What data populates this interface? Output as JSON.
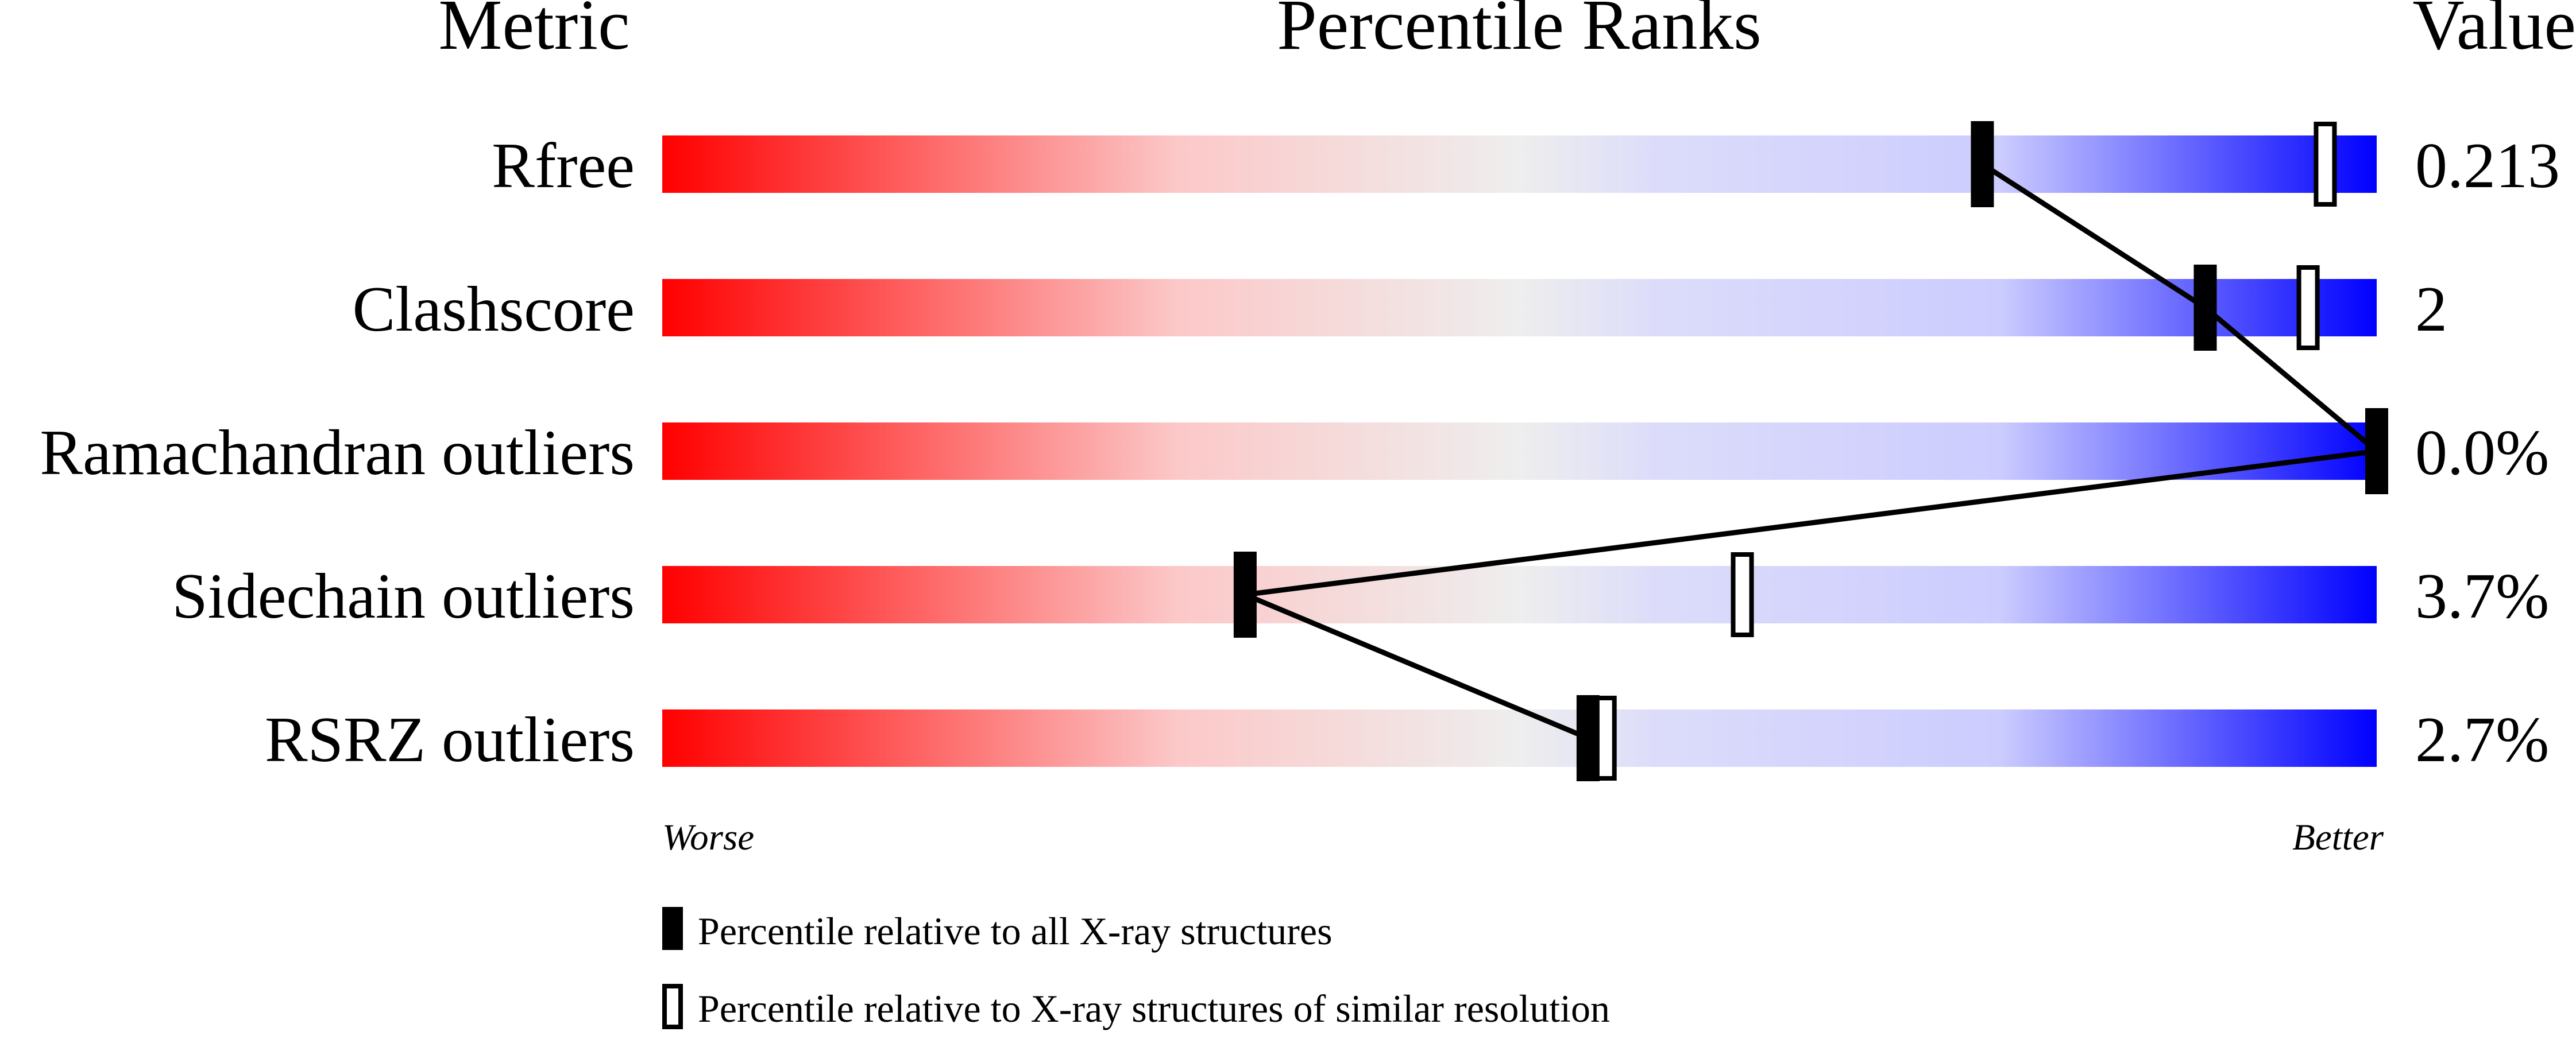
{
  "chart_data": {
    "type": "percentile-slider",
    "headers": {
      "metric": "Metric",
      "ranks": "Percentile Ranks",
      "value": "Value"
    },
    "xlim": [
      0,
      100
    ],
    "axis_labels": {
      "left": "Worse",
      "right": "Better"
    },
    "gradient_colors": [
      "#ff0000",
      "#f0f0f0",
      "#d0d0ff",
      "#0000ff"
    ],
    "rows": [
      {
        "metric": "Rfree",
        "value": "0.213",
        "percentile_all": 77,
        "percentile_similar": 97
      },
      {
        "metric": "Clashscore",
        "value": "2",
        "percentile_all": 90,
        "percentile_similar": 96
      },
      {
        "metric": "Ramachandran outliers",
        "value": "0.0%",
        "percentile_all": 100,
        "percentile_similar": 100
      },
      {
        "metric": "Sidechain outliers",
        "value": "3.7%",
        "percentile_all": 34,
        "percentile_similar": 63
      },
      {
        "metric": "RSRZ outliers",
        "value": "2.7%",
        "percentile_all": 54,
        "percentile_similar": 55
      }
    ],
    "legend": [
      {
        "marker": "filled",
        "label": "Percentile relative to all X-ray structures"
      },
      {
        "marker": "open",
        "label": "Percentile relative to X-ray structures of similar resolution"
      }
    ]
  }
}
